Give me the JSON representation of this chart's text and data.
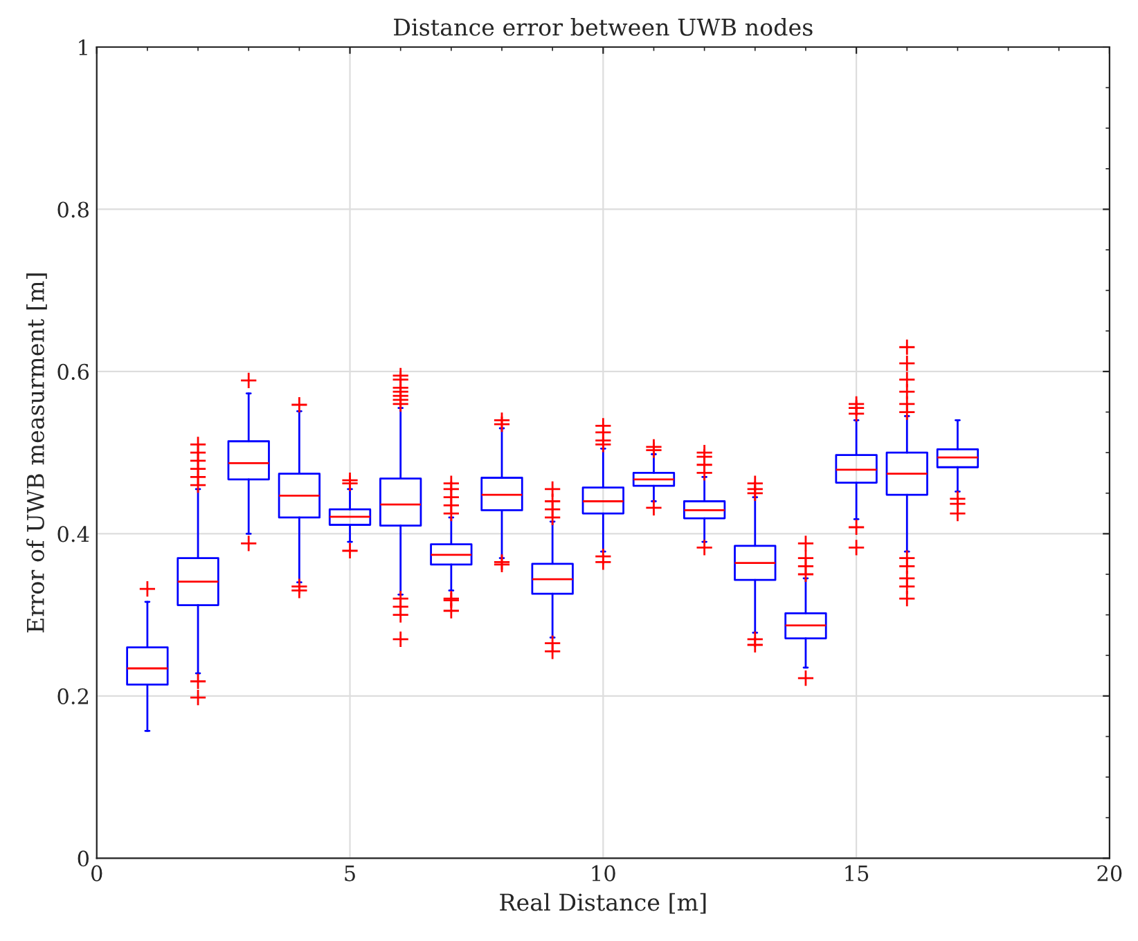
{
  "chart_data": {
    "type": "box",
    "title": "Distance error between UWB nodes",
    "xlabel": "Real Distance [m]",
    "ylabel": "Error of UWB measurment [m]",
    "x": [
      1,
      2,
      3,
      4,
      5,
      6,
      7,
      8,
      9,
      10,
      11,
      12,
      13,
      14,
      15,
      16,
      17
    ],
    "xlim": [
      0,
      20
    ],
    "xticks": [
      0,
      5,
      10,
      15,
      20
    ],
    "ylim": [
      0,
      1
    ],
    "yticks": [
      0,
      0.2,
      0.4,
      0.6,
      0.8,
      1
    ],
    "grid": true,
    "marker": "cross",
    "series": [
      {
        "color": "#0000ff",
        "boxes": [
          {
            "low": 0.157,
            "q1": 0.214,
            "median": 0.234,
            "q3": 0.26,
            "high": 0.316,
            "outliers": [
              0.332
            ]
          },
          {
            "low": 0.228,
            "q1": 0.312,
            "median": 0.341,
            "q3": 0.37,
            "high": 0.455,
            "outliers": [
              0.46,
              0.47,
              0.48,
              0.49,
              0.5,
              0.51,
              0.218,
              0.198
            ]
          },
          {
            "low": 0.4,
            "q1": 0.467,
            "median": 0.487,
            "q3": 0.514,
            "high": 0.573,
            "outliers": [
              0.589,
              0.388
            ]
          },
          {
            "low": 0.34,
            "q1": 0.42,
            "median": 0.447,
            "q3": 0.474,
            "high": 0.551,
            "outliers": [
              0.559,
              0.335,
              0.33
            ]
          },
          {
            "low": 0.39,
            "q1": 0.411,
            "median": 0.421,
            "q3": 0.43,
            "high": 0.455,
            "outliers": [
              0.462,
              0.466,
              0.379
            ]
          },
          {
            "low": 0.325,
            "q1": 0.41,
            "median": 0.436,
            "q3": 0.468,
            "high": 0.555,
            "outliers": [
              0.56,
              0.565,
              0.57,
              0.575,
              0.58,
              0.59,
              0.595,
              0.32,
              0.31,
              0.3,
              0.27
            ]
          },
          {
            "low": 0.33,
            "q1": 0.362,
            "median": 0.374,
            "q3": 0.387,
            "high": 0.42,
            "outliers": [
              0.425,
              0.435,
              0.445,
              0.455,
              0.462,
              0.32,
              0.318,
              0.305
            ]
          },
          {
            "low": 0.37,
            "q1": 0.429,
            "median": 0.448,
            "q3": 0.469,
            "high": 0.53,
            "outliers": [
              0.535,
              0.54,
              0.365,
              0.362
            ]
          },
          {
            "low": 0.272,
            "q1": 0.326,
            "median": 0.344,
            "q3": 0.363,
            "high": 0.415,
            "outliers": [
              0.42,
              0.43,
              0.44,
              0.455,
              0.265,
              0.255
            ]
          },
          {
            "low": 0.378,
            "q1": 0.425,
            "median": 0.44,
            "q3": 0.457,
            "high": 0.505,
            "outliers": [
              0.51,
              0.515,
              0.525,
              0.533,
              0.372,
              0.365
            ]
          },
          {
            "low": 0.44,
            "q1": 0.459,
            "median": 0.467,
            "q3": 0.475,
            "high": 0.498,
            "outliers": [
              0.503,
              0.507,
              0.432
            ]
          },
          {
            "low": 0.39,
            "q1": 0.419,
            "median": 0.429,
            "q3": 0.44,
            "high": 0.47,
            "outliers": [
              0.475,
              0.485,
              0.495,
              0.5,
              0.383
            ]
          },
          {
            "low": 0.278,
            "q1": 0.343,
            "median": 0.364,
            "q3": 0.385,
            "high": 0.445,
            "outliers": [
              0.45,
              0.455,
              0.462,
              0.27,
              0.263
            ]
          },
          {
            "low": 0.235,
            "q1": 0.271,
            "median": 0.287,
            "q3": 0.302,
            "high": 0.345,
            "outliers": [
              0.35,
              0.36,
              0.37,
              0.388,
              0.222
            ]
          },
          {
            "low": 0.418,
            "q1": 0.463,
            "median": 0.479,
            "q3": 0.497,
            "high": 0.54,
            "outliers": [
              0.548,
              0.555,
              0.56,
              0.408,
              0.383
            ]
          },
          {
            "low": 0.378,
            "q1": 0.448,
            "median": 0.474,
            "q3": 0.5,
            "high": 0.545,
            "outliers": [
              0.55,
              0.56,
              0.575,
              0.59,
              0.61,
              0.63,
              0.37,
              0.36,
              0.345,
              0.335,
              0.32
            ]
          },
          {
            "low": 0.452,
            "q1": 0.482,
            "median": 0.494,
            "q3": 0.504,
            "high": 0.54,
            "outliers": [
              0.443,
              0.437,
              0.425
            ]
          }
        ]
      }
    ]
  }
}
